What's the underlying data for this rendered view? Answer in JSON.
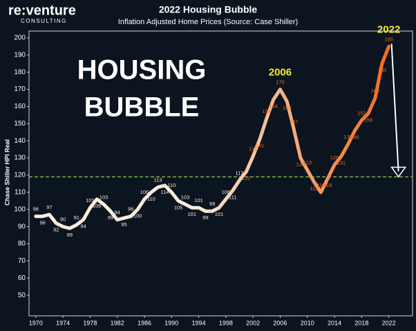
{
  "chart_data": {
    "type": "line",
    "logo": [
      "re:venture",
      "CONSULTING"
    ],
    "title": "2022 Housing Bubble",
    "subtitle": "Inflation Adjusted Home Prices (Source: Case Shiller)",
    "y_label": "Chase Shiller  HPI Real",
    "headline": [
      "HOUSING",
      "BUBBLE"
    ],
    "x": [
      1970,
      1971,
      1972,
      1973,
      1974,
      1975,
      1976,
      1977,
      1978,
      1979,
      1980,
      1981,
      1982,
      1983,
      1984,
      1985,
      1986,
      1987,
      1988,
      1989,
      1990,
      1991,
      1992,
      1993,
      1994,
      1995,
      1996,
      1997,
      1998,
      1999,
      2000,
      2001,
      2002,
      2003,
      2004,
      2005,
      2006,
      2007,
      2008,
      2009,
      2010,
      2011,
      2012,
      2013,
      2014,
      2015,
      2016,
      2017,
      2018,
      2019,
      2020,
      2021,
      2022
    ],
    "series": [
      {
        "name": "Case Shiller",
        "color": "#f26b1d",
        "start_color": "#f7ecdf",
        "values": [
          96,
          96,
          97,
          92,
          90,
          89,
          91,
          94,
          101,
          106,
          103,
          99,
          94,
          95,
          96,
          100,
          106,
          110,
          113,
          114,
          110,
          105,
          103,
          101,
          101,
          99,
          99,
          101,
          106,
          111,
          117,
          122,
          131,
          141,
          153,
          164,
          170,
          163,
          147,
          130,
          123,
          116,
          110,
          118,
          126,
          131,
          138,
          146,
          152,
          156,
          165,
          185,
          195
        ]
      }
    ],
    "xlim": [
      1969,
      2025.5
    ],
    "ylim": [
      38,
      204
    ],
    "xticks": [
      1970,
      1974,
      1978,
      1982,
      1986,
      1990,
      1994,
      1998,
      2002,
      2006,
      2010,
      2014,
      2018,
      2022
    ],
    "yticks": [
      50,
      60,
      70,
      80,
      90,
      100,
      110,
      120,
      130,
      140,
      150,
      160,
      170,
      180,
      190,
      200
    ],
    "hline": 119,
    "hline_color": "#8fd14f",
    "annotations": [
      {
        "text": "2006",
        "x": 2006,
        "y": 170,
        "color": "#f5ec3a"
      },
      {
        "text": "2022",
        "x": 2022,
        "y": 195,
        "color": "#f5ec3a"
      }
    ]
  }
}
